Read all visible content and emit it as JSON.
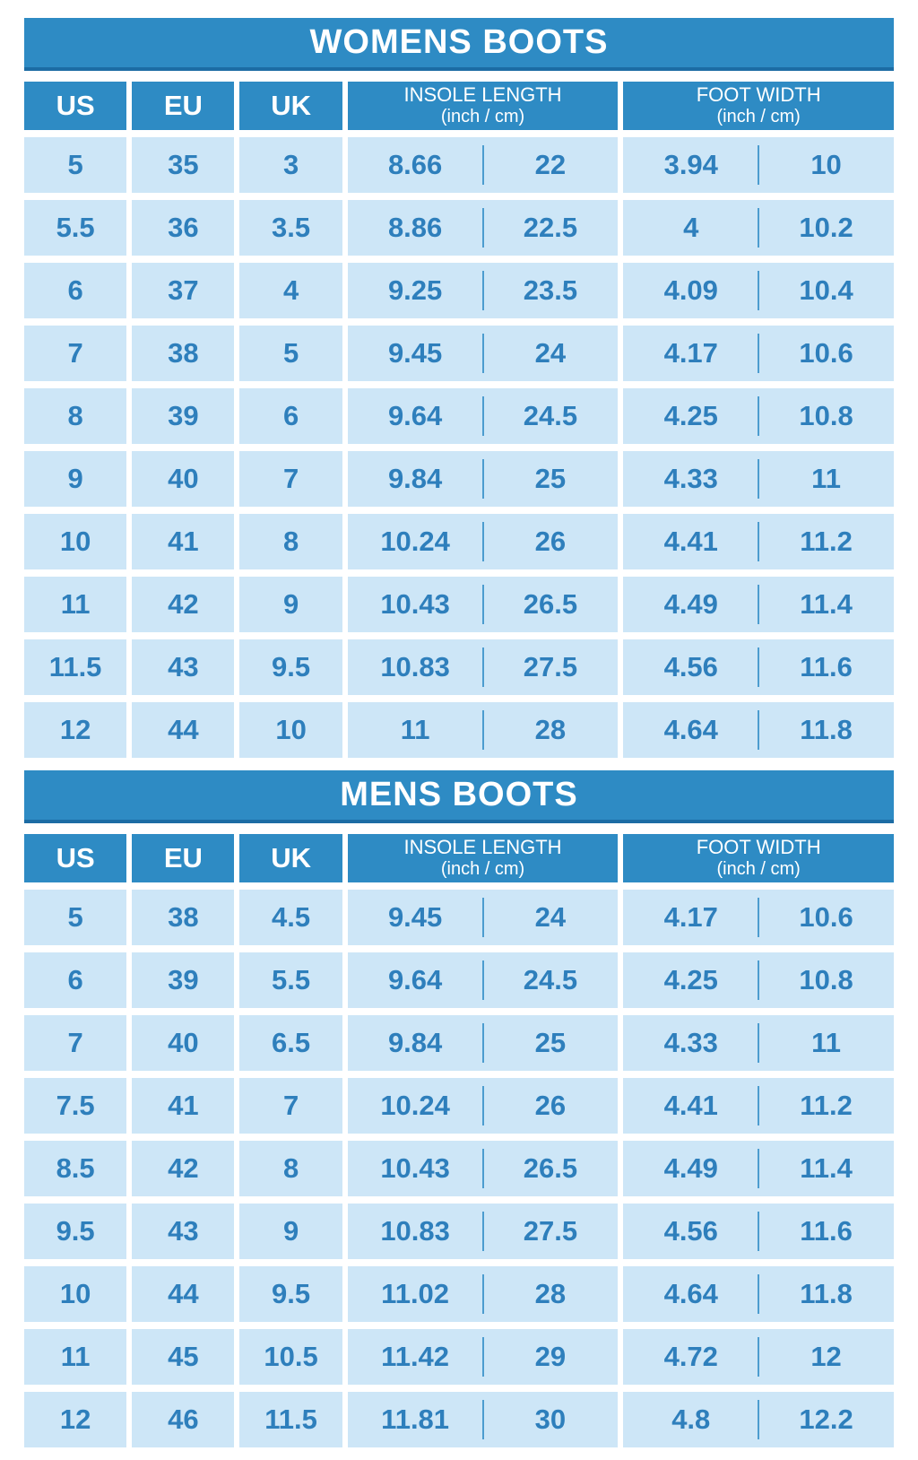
{
  "colors": {
    "header_blue": "#2E8BC4",
    "title_border": "#1C6CA4",
    "cell_bg": "#CDE6F7",
    "text_blue": "#2E7FBC",
    "divider": "#4C9CCF",
    "page_bg": "#FFFFFF"
  },
  "chart_data": [
    {
      "type": "table",
      "title": "WOMENS BOOTS",
      "header": {
        "us": "US",
        "eu": "EU",
        "uk": "UK",
        "insole_label": "INSOLE LENGTH",
        "insole_sub": "(inch / cm)",
        "foot_label": "FOOT WIDTH",
        "foot_sub": "(inch / cm)"
      },
      "columns": [
        "US",
        "EU",
        "UK",
        "INSOLE LENGTH inch",
        "INSOLE LENGTH cm",
        "FOOT WIDTH inch",
        "FOOT WIDTH cm"
      ],
      "rows": [
        [
          "5",
          "35",
          "3",
          "8.66",
          "22",
          "3.94",
          "10"
        ],
        [
          "5.5",
          "36",
          "3.5",
          "8.86",
          "22.5",
          "4",
          "10.2"
        ],
        [
          "6",
          "37",
          "4",
          "9.25",
          "23.5",
          "4.09",
          "10.4"
        ],
        [
          "7",
          "38",
          "5",
          "9.45",
          "24",
          "4.17",
          "10.6"
        ],
        [
          "8",
          "39",
          "6",
          "9.64",
          "24.5",
          "4.25",
          "10.8"
        ],
        [
          "9",
          "40",
          "7",
          "9.84",
          "25",
          "4.33",
          "11"
        ],
        [
          "10",
          "41",
          "8",
          "10.24",
          "26",
          "4.41",
          "11.2"
        ],
        [
          "11",
          "42",
          "9",
          "10.43",
          "26.5",
          "4.49",
          "11.4"
        ],
        [
          "11.5",
          "43",
          "9.5",
          "10.83",
          "27.5",
          "4.56",
          "11.6"
        ],
        [
          "12",
          "44",
          "10",
          "11",
          "28",
          "4.64",
          "11.8"
        ]
      ]
    },
    {
      "type": "table",
      "title": "MENS BOOTS",
      "header": {
        "us": "US",
        "eu": "EU",
        "uk": "UK",
        "insole_label": "INSOLE LENGTH",
        "insole_sub": "(inch / cm)",
        "foot_label": "FOOT WIDTH",
        "foot_sub": "(inch / cm)"
      },
      "columns": [
        "US",
        "EU",
        "UK",
        "INSOLE LENGTH inch",
        "INSOLE LENGTH cm",
        "FOOT WIDTH inch",
        "FOOT WIDTH cm"
      ],
      "rows": [
        [
          "5",
          "38",
          "4.5",
          "9.45",
          "24",
          "4.17",
          "10.6"
        ],
        [
          "6",
          "39",
          "5.5",
          "9.64",
          "24.5",
          "4.25",
          "10.8"
        ],
        [
          "7",
          "40",
          "6.5",
          "9.84",
          "25",
          "4.33",
          "11"
        ],
        [
          "7.5",
          "41",
          "7",
          "10.24",
          "26",
          "4.41",
          "11.2"
        ],
        [
          "8.5",
          "42",
          "8",
          "10.43",
          "26.5",
          "4.49",
          "11.4"
        ],
        [
          "9.5",
          "43",
          "9",
          "10.83",
          "27.5",
          "4.56",
          "11.6"
        ],
        [
          "10",
          "44",
          "9.5",
          "11.02",
          "28",
          "4.64",
          "11.8"
        ],
        [
          "11",
          "45",
          "10.5",
          "11.42",
          "29",
          "4.72",
          "12"
        ],
        [
          "12",
          "46",
          "11.5",
          "11.81",
          "30",
          "4.8",
          "12.2"
        ]
      ]
    }
  ]
}
